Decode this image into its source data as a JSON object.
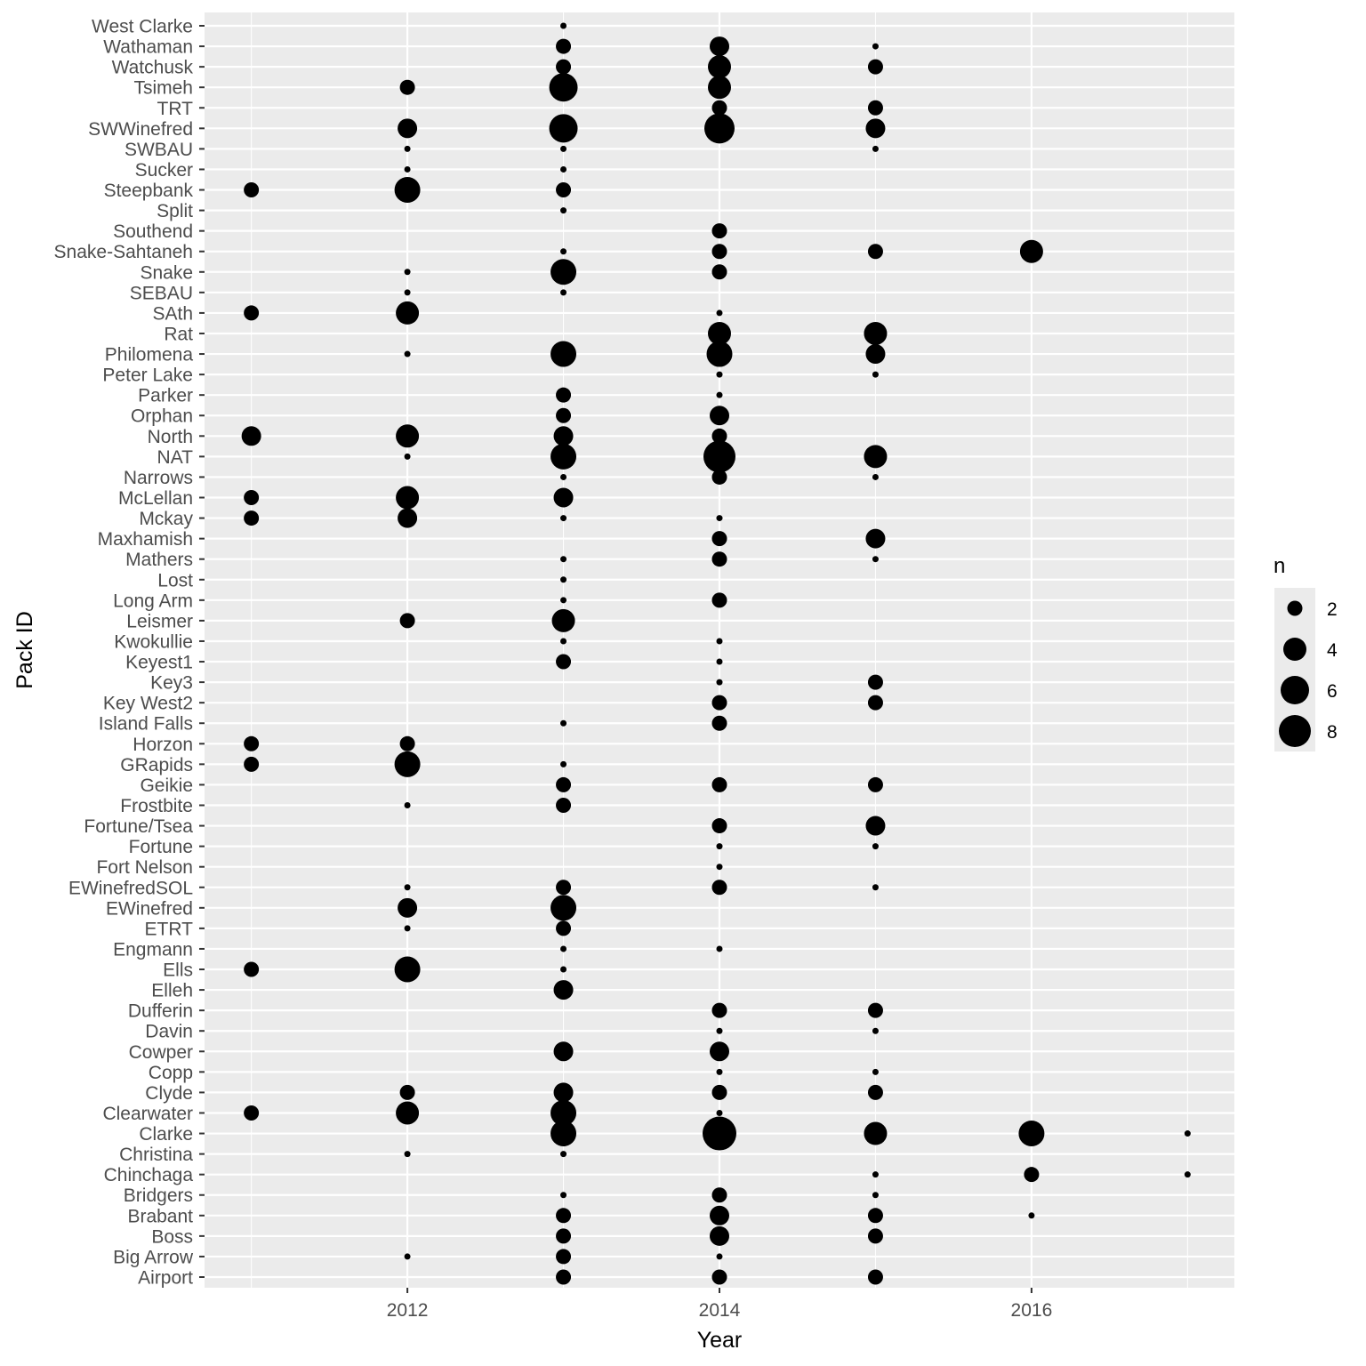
{
  "chart_data": {
    "type": "scatter",
    "xlabel": "Year",
    "ylabel": "Pack ID",
    "xlim": [
      2010.7,
      2017.3
    ],
    "x_ticks": [
      2012,
      2014,
      2016
    ],
    "grid": true,
    "legend": {
      "title": "n",
      "placement": "right",
      "values": [
        2,
        4,
        6,
        8
      ]
    },
    "point_color": "#000000",
    "panel_background": "#EBEBEB",
    "packs": [
      {
        "pack": "West Clarke",
        "counts": {
          "2013": 1
        }
      },
      {
        "pack": "Wathaman",
        "counts": {
          "2013": 2,
          "2014": 3,
          "2015": 1
        }
      },
      {
        "pack": "Watchusk",
        "counts": {
          "2013": 2,
          "2014": 4,
          "2015": 2
        }
      },
      {
        "pack": "Tsimeh",
        "counts": {
          "2012": 2,
          "2013": 6,
          "2014": 4
        }
      },
      {
        "pack": "TRT",
        "counts": {
          "2014": 2,
          "2015": 2
        }
      },
      {
        "pack": "SWWinefred",
        "counts": {
          "2012": 3,
          "2013": 6,
          "2014": 7,
          "2015": 3
        }
      },
      {
        "pack": "SWBAU",
        "counts": {
          "2012": 1,
          "2013": 1,
          "2015": 1
        }
      },
      {
        "pack": "Sucker",
        "counts": {
          "2012": 1,
          "2013": 1
        }
      },
      {
        "pack": "Steepbank",
        "counts": {
          "2011": 2,
          "2012": 5,
          "2013": 2
        }
      },
      {
        "pack": "Split",
        "counts": {
          "2013": 1
        }
      },
      {
        "pack": "Southend",
        "counts": {
          "2014": 2
        }
      },
      {
        "pack": "Snake-Sahtaneh",
        "counts": {
          "2013": 1,
          "2014": 2,
          "2015": 2,
          "2016": 4
        }
      },
      {
        "pack": "Snake",
        "counts": {
          "2012": 1,
          "2013": 5,
          "2014": 2
        }
      },
      {
        "pack": "SEBAU",
        "counts": {
          "2012": 1,
          "2013": 1
        }
      },
      {
        "pack": "SAth",
        "counts": {
          "2011": 2,
          "2012": 4,
          "2014": 1
        }
      },
      {
        "pack": "Rat",
        "counts": {
          "2014": 4,
          "2015": 4
        }
      },
      {
        "pack": "Philomena",
        "counts": {
          "2012": 1,
          "2013": 5,
          "2014": 5,
          "2015": 3
        }
      },
      {
        "pack": "Peter Lake",
        "counts": {
          "2014": 1,
          "2015": 1
        }
      },
      {
        "pack": "Parker",
        "counts": {
          "2013": 2,
          "2014": 1
        }
      },
      {
        "pack": "Orphan",
        "counts": {
          "2013": 2,
          "2014": 3
        }
      },
      {
        "pack": "North",
        "counts": {
          "2011": 3,
          "2012": 4,
          "2013": 3,
          "2014": 2
        }
      },
      {
        "pack": "NAT",
        "counts": {
          "2012": 1,
          "2013": 5,
          "2014": 8,
          "2015": 4
        }
      },
      {
        "pack": "Narrows",
        "counts": {
          "2013": 1,
          "2014": 2,
          "2015": 1
        }
      },
      {
        "pack": "McLellan",
        "counts": {
          "2011": 2,
          "2012": 4,
          "2013": 3
        }
      },
      {
        "pack": "Mckay",
        "counts": {
          "2011": 2,
          "2012": 3,
          "2013": 1,
          "2014": 1
        }
      },
      {
        "pack": "Maxhamish",
        "counts": {
          "2014": 2,
          "2015": 3
        }
      },
      {
        "pack": "Mathers",
        "counts": {
          "2013": 1,
          "2014": 2,
          "2015": 1
        }
      },
      {
        "pack": "Lost",
        "counts": {
          "2013": 1
        }
      },
      {
        "pack": "Long Arm",
        "counts": {
          "2013": 1,
          "2014": 2
        }
      },
      {
        "pack": "Leismer",
        "counts": {
          "2012": 2,
          "2013": 4
        }
      },
      {
        "pack": "Kwokullie",
        "counts": {
          "2013": 1,
          "2014": 1
        }
      },
      {
        "pack": "Keyest1",
        "counts": {
          "2013": 2,
          "2014": 1
        }
      },
      {
        "pack": "Key3",
        "counts": {
          "2014": 1,
          "2015": 2
        }
      },
      {
        "pack": "Key West2",
        "counts": {
          "2014": 2,
          "2015": 2
        }
      },
      {
        "pack": "Island Falls",
        "counts": {
          "2013": 1,
          "2014": 2
        }
      },
      {
        "pack": "Horzon",
        "counts": {
          "2011": 2,
          "2012": 2
        }
      },
      {
        "pack": "GRapids",
        "counts": {
          "2011": 2,
          "2012": 5,
          "2013": 1
        }
      },
      {
        "pack": "Geikie",
        "counts": {
          "2013": 2,
          "2014": 2,
          "2015": 2
        }
      },
      {
        "pack": "Frostbite",
        "counts": {
          "2012": 1,
          "2013": 2
        }
      },
      {
        "pack": "Fortune/Tsea",
        "counts": {
          "2014": 2,
          "2015": 3
        }
      },
      {
        "pack": "Fortune",
        "counts": {
          "2014": 1,
          "2015": 1
        }
      },
      {
        "pack": "Fort Nelson",
        "counts": {
          "2014": 1
        }
      },
      {
        "pack": "EWinefredSOL",
        "counts": {
          "2012": 1,
          "2013": 2,
          "2014": 2,
          "2015": 1
        }
      },
      {
        "pack": "EWinefred",
        "counts": {
          "2012": 3,
          "2013": 5
        }
      },
      {
        "pack": "ETRT",
        "counts": {
          "2012": 1,
          "2013": 2
        }
      },
      {
        "pack": "Engmann",
        "counts": {
          "2013": 1,
          "2014": 1
        }
      },
      {
        "pack": "Ells",
        "counts": {
          "2011": 2,
          "2012": 5,
          "2013": 1
        }
      },
      {
        "pack": "Elleh",
        "counts": {
          "2013": 3
        }
      },
      {
        "pack": "Dufferin",
        "counts": {
          "2014": 2,
          "2015": 2
        }
      },
      {
        "pack": "Davin",
        "counts": {
          "2014": 1,
          "2015": 1
        }
      },
      {
        "pack": "Cowper",
        "counts": {
          "2013": 3,
          "2014": 3
        }
      },
      {
        "pack": "Copp",
        "counts": {
          "2014": 1,
          "2015": 1
        }
      },
      {
        "pack": "Clyde",
        "counts": {
          "2012": 2,
          "2013": 3,
          "2014": 2,
          "2015": 2
        }
      },
      {
        "pack": "Clearwater",
        "counts": {
          "2011": 2,
          "2012": 4,
          "2013": 5,
          "2014": 1
        }
      },
      {
        "pack": "Clarke",
        "counts": {
          "2013": 5,
          "2014": 9,
          "2015": 4,
          "2016": 5,
          "2017": 1
        }
      },
      {
        "pack": "Christina",
        "counts": {
          "2012": 1,
          "2013": 1
        }
      },
      {
        "pack": "Chinchaga",
        "counts": {
          "2015": 1,
          "2016": 2,
          "2017": 1
        }
      },
      {
        "pack": "Bridgers",
        "counts": {
          "2013": 1,
          "2014": 2,
          "2015": 1
        }
      },
      {
        "pack": "Brabant",
        "counts": {
          "2013": 2,
          "2014": 3,
          "2015": 2,
          "2016": 1
        }
      },
      {
        "pack": "Boss",
        "counts": {
          "2013": 2,
          "2014": 3,
          "2015": 2
        }
      },
      {
        "pack": "Big Arrow",
        "counts": {
          "2012": 1,
          "2013": 2,
          "2014": 1
        }
      },
      {
        "pack": "Airport",
        "counts": {
          "2013": 2,
          "2014": 2,
          "2015": 2
        }
      }
    ]
  }
}
